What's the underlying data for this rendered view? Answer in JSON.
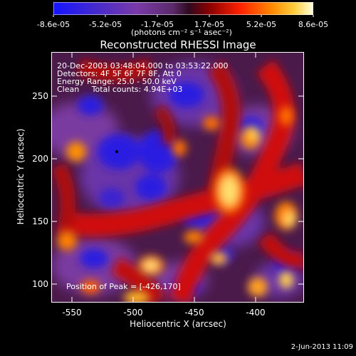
{
  "colorbar": {
    "ticks": [
      "-8.6e-05",
      "-5.2e-05",
      "-1.7e-05",
      "1.7e-05",
      "5.2e-05",
      "8.6e-05"
    ],
    "units": "(photons cm⁻² s⁻¹ asec⁻²)"
  },
  "plot": {
    "title": "Reconstructed RHESSI Image",
    "info_lines": [
      "20-Dec-2003 03:48:04.000 to 03:53:22.000",
      "Detectors: 4F 5F 6F 7F 8F, Att 0",
      "Energy Range: 25.0 - 50.0 keV",
      "Clean     Total counts: 4.94E+03"
    ],
    "peak_label": "Position of Peak = [-426,170]",
    "xlabel": "Heliocentric X (arcsec)",
    "ylabel": "Heliocentric Y (arcsec)",
    "xticks": [
      "-550",
      "-500",
      "-450",
      "-400"
    ],
    "yticks": [
      "100",
      "150",
      "200",
      "250"
    ],
    "xrange": [
      -563,
      -370
    ],
    "yrange": [
      85,
      285
    ]
  },
  "footer": {
    "date": "2-Jun-2013 11:09"
  }
}
